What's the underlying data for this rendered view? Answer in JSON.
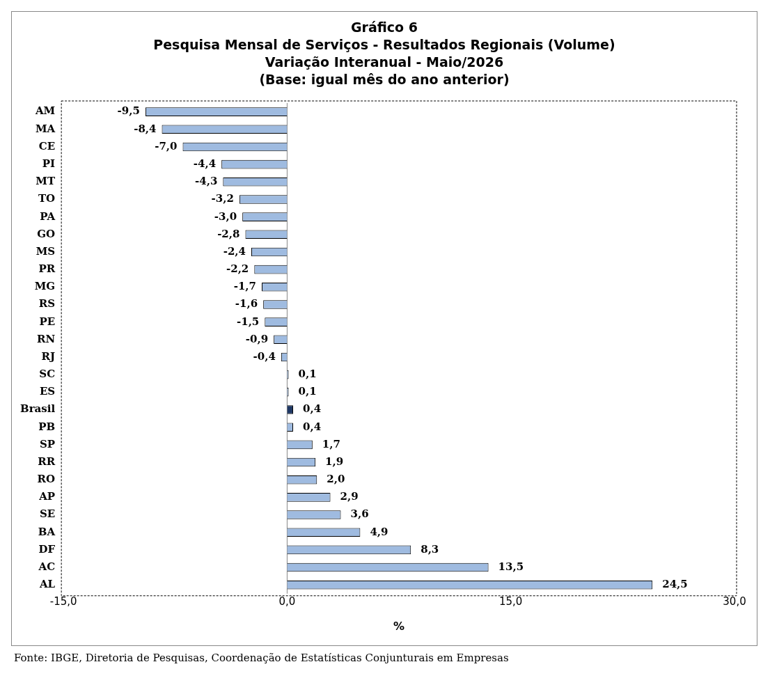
{
  "chart_data": {
    "type": "bar",
    "orientation": "horizontal",
    "title": "Gráfico 6\nPesquisa Mensal de Serviços - Resultados Regionais (Volume)",
    "subtitle": "Variação Interanual - Maio/2026\n(Base: igual mês do ano anterior)",
    "xlabel": "%",
    "categories": [
      "AM",
      "MA",
      "CE",
      "PI",
      "MT",
      "TO",
      "PA",
      "GO",
      "MS",
      "PR",
      "MG",
      "RS",
      "PE",
      "RN",
      "RJ",
      "SC",
      "ES",
      "Brasil",
      "PB",
      "SP",
      "RR",
      "RO",
      "AP",
      "SE",
      "BA",
      "DF",
      "AC",
      "AL"
    ],
    "values": [
      -9.5,
      -8.4,
      -7.0,
      -4.4,
      -4.3,
      -3.2,
      -3.0,
      -2.8,
      -2.4,
      -2.2,
      -1.7,
      -1.6,
      -1.5,
      -0.9,
      -0.4,
      0.1,
      0.1,
      0.4,
      0.4,
      1.7,
      1.9,
      2.0,
      2.9,
      3.6,
      4.9,
      8.3,
      13.5,
      24.5
    ],
    "value_labels": [
      "-9,5",
      "-8,4",
      "-7,0",
      "-4,4",
      "-4,3",
      "-3,2",
      "-3,0",
      "-2,8",
      "-2,4",
      "-2,2",
      "-1,7",
      "-1,6",
      "-1,5",
      "-0,9",
      "-0,4",
      "0,1",
      "0,1",
      "0,4",
      "0,4",
      "1,7",
      "1,9",
      "2,0",
      "2,9",
      "3,6",
      "4,9",
      "8,3",
      "13,5",
      "24,5"
    ],
    "colors": [
      "#9fbbe0",
      "#9fbbe0",
      "#9fbbe0",
      "#9fbbe0",
      "#9fbbe0",
      "#9fbbe0",
      "#9fbbe0",
      "#9fbbe0",
      "#9fbbe0",
      "#9fbbe0",
      "#9fbbe0",
      "#9fbbe0",
      "#9fbbe0",
      "#9fbbe0",
      "#9fbbe0",
      "#9fbbe0",
      "#9fbbe0",
      "#1f3864",
      "#9fbbe0",
      "#9fbbe0",
      "#9fbbe0",
      "#9fbbe0",
      "#9fbbe0",
      "#9fbbe0",
      "#9fbbe0",
      "#9fbbe0",
      "#9fbbe0",
      "#9fbbe0"
    ],
    "xlim": [
      -15,
      30
    ],
    "xticks": [
      {
        "value": -15,
        "label": "-15,0"
      },
      {
        "value": 0,
        "label": "0,0"
      },
      {
        "value": 15,
        "label": "15,0"
      },
      {
        "value": 30,
        "label": "30,0"
      }
    ],
    "grid": false,
    "legend": false,
    "ref_lines": [
      {
        "axis": "x",
        "value": 0,
        "color": "#888888"
      }
    ],
    "annotations": [
      "Fonte: IBGE, Diretoria de Pesquisas, Coordenação de Estatísticas Conjunturais em Empresas"
    ]
  }
}
